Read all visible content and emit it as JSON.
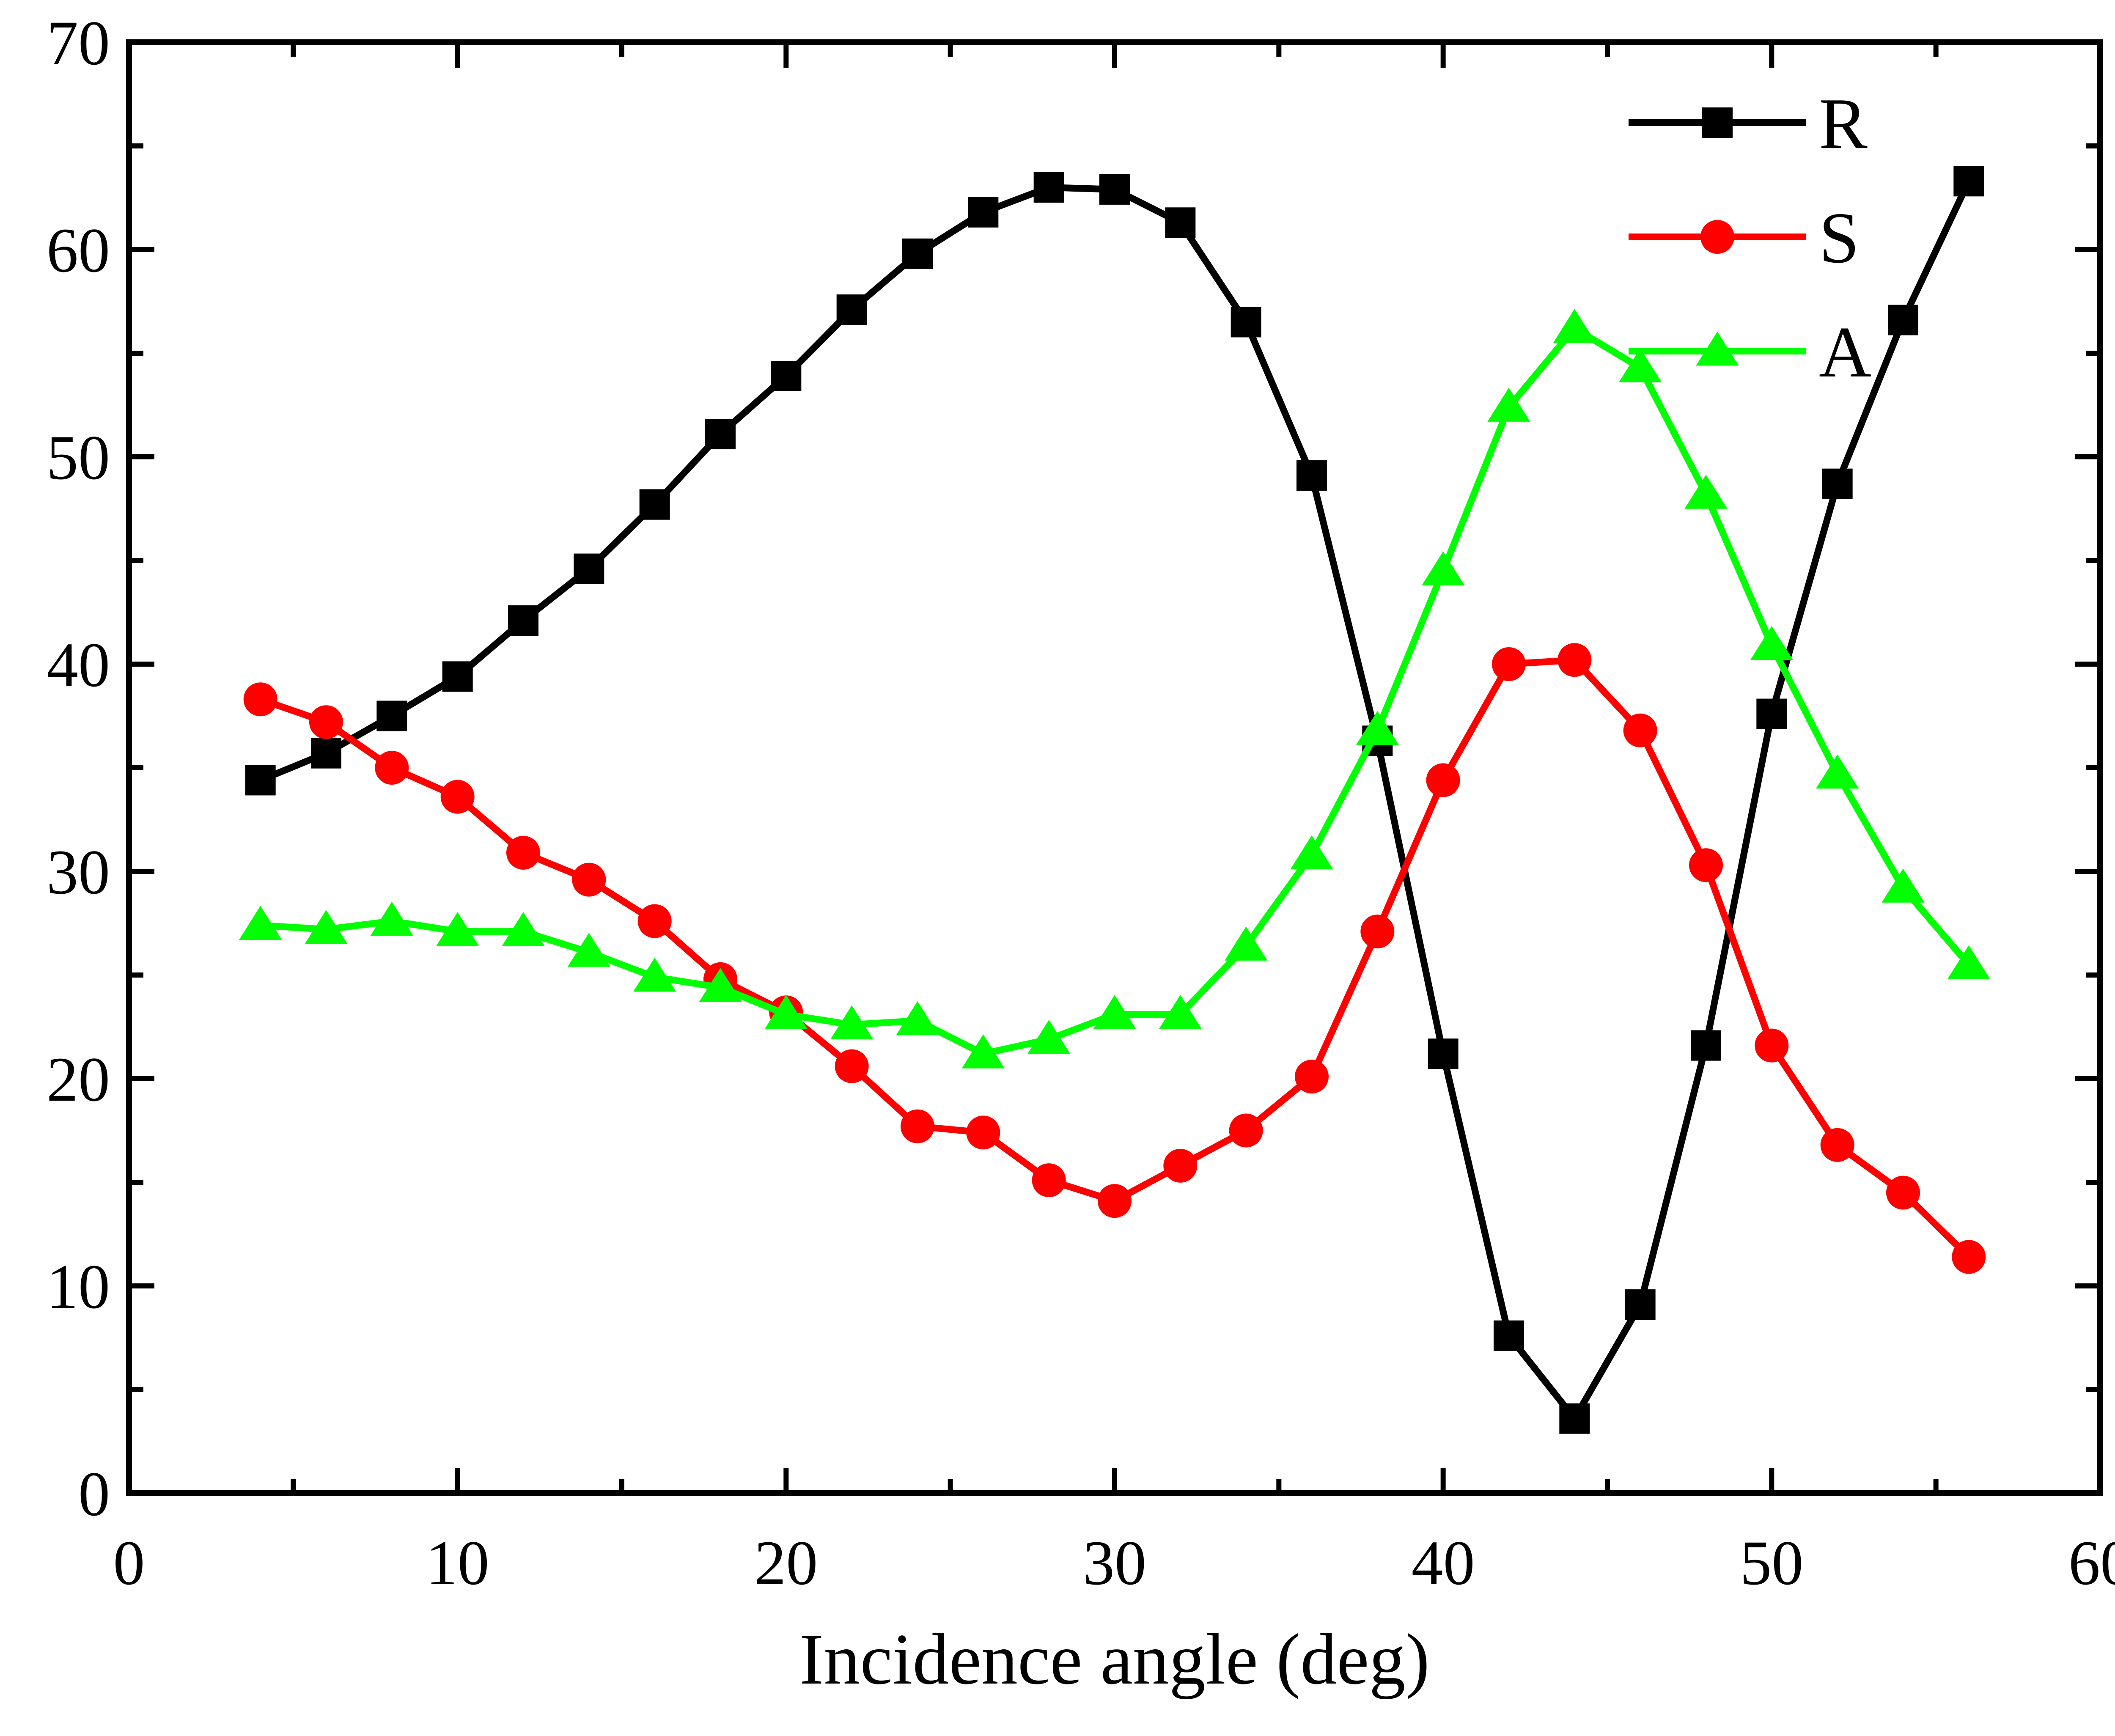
{
  "chart_data": {
    "type": "line",
    "title": "",
    "xlabel": "Incidence angle (deg)",
    "ylabel": "",
    "xlim": [
      0,
      60
    ],
    "ylim": [
      0,
      70
    ],
    "x_ticks": [
      0,
      10,
      20,
      30,
      40,
      50,
      60
    ],
    "y_ticks": [
      0,
      10,
      20,
      30,
      40,
      50,
      60,
      70
    ],
    "x_tick_labels": [
      "0",
      "10",
      "20",
      "30",
      "40",
      "50",
      "60"
    ],
    "y_tick_labels": [
      "0",
      "10",
      "20",
      "30",
      "40",
      "50",
      "60",
      "70"
    ],
    "grid": false,
    "legend_position": "top-right",
    "x": [
      4,
      6,
      8,
      10,
      12,
      14,
      16,
      18,
      20,
      22,
      24,
      26,
      28,
      30,
      32,
      34,
      36,
      38,
      40,
      42,
      44,
      46,
      48,
      50,
      52,
      54,
      56
    ],
    "series": [
      {
        "name": "R",
        "color": "#000000",
        "marker": "square",
        "values": [
          34.4,
          35.7,
          37.5,
          39.4,
          42.1,
          44.6,
          47.7,
          51.1,
          53.9,
          57.1,
          59.8,
          61.8,
          63.0,
          62.9,
          61.3,
          56.5,
          49.1,
          36.3,
          21.2,
          7.6,
          3.6,
          9.1,
          21.6,
          37.6,
          48.7,
          56.6,
          63.3
        ]
      },
      {
        "name": "S",
        "color": "#ff0000",
        "marker": "circle",
        "values": [
          38.3,
          37.2,
          35.0,
          33.6,
          30.9,
          29.6,
          27.6,
          24.8,
          23.2,
          20.6,
          17.7,
          17.4,
          15.1,
          14.1,
          15.8,
          17.5,
          20.1,
          27.1,
          34.4,
          40.0,
          40.2,
          36.8,
          30.3,
          21.6,
          16.8,
          14.5,
          11.4
        ]
      },
      {
        "name": "A",
        "color": "#00ff00",
        "marker": "triangle",
        "values": [
          27.4,
          27.2,
          27.6,
          27.1,
          27.1,
          26.1,
          24.9,
          24.4,
          23.1,
          22.6,
          22.8,
          21.2,
          21.9,
          23.1,
          23.1,
          26.4,
          30.8,
          36.8,
          44.5,
          52.4,
          56.2,
          54.3,
          48.2,
          40.9,
          34.7,
          29.2,
          25.5
        ]
      }
    ]
  }
}
